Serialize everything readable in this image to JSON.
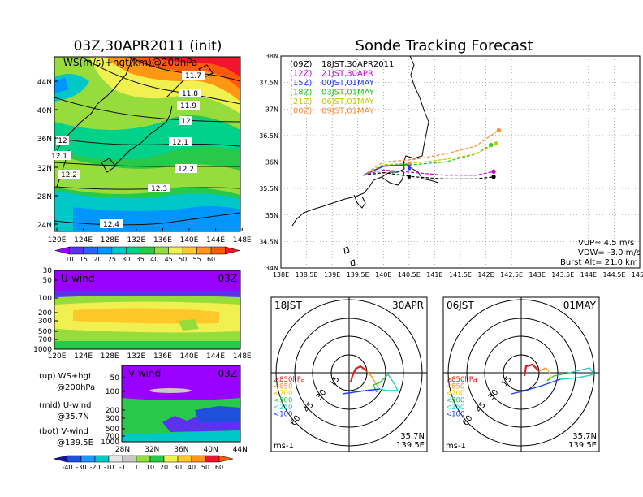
{
  "colors": {
    "ws_scale": [
      "#9900ff",
      "#5a32f0",
      "#2a64ff",
      "#0096ff",
      "#00c8c8",
      "#00d28c",
      "#28c84b",
      "#96dc3c",
      "#f0f050",
      "#ffc828",
      "#ff9614",
      "#ff5a0a",
      "#f0142d"
    ],
    "wind_scale": [
      "#1414a0",
      "#1e50dc",
      "#1e96ff",
      "#00c8c8",
      "#e6e6e6",
      "#c8c8c8",
      "#96dc3c",
      "#28c84b",
      "#f0f050",
      "#ffc828",
      "#ff9614",
      "#f0142d"
    ],
    "track": [
      "#000000",
      "#c800c8",
      "#1e3cff",
      "#14c814",
      "#c8c800",
      "#ff8c32"
    ]
  },
  "left": {
    "map_title": "03Z,30APR2011 (init)",
    "map_label": "WS(m/s)+hgt(km)@200hPa",
    "lat_ticks": [
      "44N",
      "40N",
      "36N",
      "32N",
      "28N",
      "24N"
    ],
    "lon_ticks": [
      "120E",
      "124E",
      "128E",
      "132E",
      "136E",
      "140E",
      "144E",
      "148E"
    ],
    "contour_labels": [
      "11.7",
      "11.8",
      "11.9",
      "12",
      "12.1",
      "12",
      "12.1",
      "12.2",
      "12.2",
      "12.3",
      "12.4"
    ],
    "colorbar_ticks": [
      "10",
      "15",
      "20",
      "25",
      "30",
      "35",
      "40",
      "45",
      "50",
      "55",
      "60"
    ],
    "u_label": "U-wind",
    "u_time": "03Z",
    "p_ticks": [
      "30",
      "50",
      "100",
      "200",
      "300",
      "500",
      "700",
      "1000"
    ],
    "v_label": "V-wind",
    "v_time": "03Z",
    "v_p_ticks": [
      "50",
      "100",
      "200",
      "300",
      "500",
      "700",
      "1000"
    ],
    "v_lat_ticks": [
      "28N",
      "32N",
      "36N",
      "40N",
      "44N"
    ],
    "legend": {
      "up1": "(up) WS+hgt",
      "up2": "@200hPa",
      "mid1": "(mid) U-wind",
      "mid2": "@35.7N",
      "bot1": "(bot) V-wind",
      "bot2": "@139.5E"
    },
    "wind_colorbar_ticks": [
      "-40",
      "-30",
      "-20",
      "-10",
      "-1",
      "1",
      "10",
      "20",
      "30",
      "40",
      "50",
      "60"
    ]
  },
  "right": {
    "title": "Sonde Tracking Forecast",
    "lat_ticks": [
      "38N",
      "37.5N",
      "37N",
      "36.5N",
      "36N",
      "35.5N",
      "35N",
      "34.5N",
      "34N"
    ],
    "lon_ticks": [
      "138E",
      "138.5E",
      "139E",
      "139.5E",
      "140E",
      "140.5E",
      "141E",
      "141.5E",
      "142E",
      "142.5E",
      "143E",
      "143.5E",
      "144E",
      "144.5E",
      "145E"
    ],
    "tracks": [
      {
        "z": "(09Z)",
        "jst": "18JST,30APR2011"
      },
      {
        "z": "(12Z)",
        "jst": "21JST,30APR"
      },
      {
        "z": "(15Z)",
        "jst": "00JST,01MAY"
      },
      {
        "z": "(18Z)",
        "jst": "03JST,01MAY"
      },
      {
        "z": "(21Z)",
        "jst": "06JST,01MAY"
      },
      {
        "z": "(00Z)",
        "jst": "09JST,01MAY"
      }
    ],
    "vup": "VUP= 4.5 m/s",
    "vdw": "VDW= -3.0 m/s",
    "burst": "Burst Alt= 21.0 km"
  },
  "hodographs": [
    {
      "time": "18JST",
      "date": "30APR",
      "lat": "35.7N",
      "lon": "139.5E"
    },
    {
      "time": "06JST",
      "date": "01MAY",
      "lat": "35.7N",
      "lon": "139.5E"
    }
  ],
  "hodo_common": {
    "ring_labels": [
      "15",
      "30",
      "45",
      "60"
    ],
    "units": "ms-1",
    "levels": [
      {
        "label": "≥850hPa",
        "color": "#e61e1e"
      },
      {
        "label": "<850",
        "color": "#ff9614"
      },
      {
        "label": "<700",
        "color": "#e6c800"
      },
      {
        "label": "<500",
        "color": "#28c84b"
      },
      {
        "label": "<250",
        "color": "#28c8c8"
      },
      {
        "label": "<100",
        "color": "#1e3cff"
      }
    ]
  },
  "chart_data": [
    {
      "type": "heatmap",
      "title": "03Z,30APR2011 (init)",
      "annotation": "WS(m/s)+hgt(km)@200hPa",
      "xlim": [
        "120E",
        "148E"
      ],
      "ylim": [
        "22N",
        "46N"
      ],
      "colorbar": [
        10,
        15,
        20,
        25,
        30,
        35,
        40,
        45,
        50,
        55,
        60
      ],
      "contour_labels": [
        11.7,
        11.8,
        11.9,
        12,
        12.1,
        12,
        12.1,
        12.2,
        12.2,
        12.3,
        12.4
      ]
    },
    {
      "type": "heatmap",
      "title": "U-wind",
      "annotation": "03Z",
      "x_ticks": [
        "120E",
        "124E",
        "128E",
        "132E",
        "136E",
        "140E",
        "144E",
        "148E"
      ],
      "y_ticks_hPa": [
        30,
        50,
        100,
        200,
        300,
        500,
        700,
        1000
      ]
    },
    {
      "type": "heatmap",
      "title": "V-wind",
      "annotation": "03Z",
      "x_ticks": [
        "28N",
        "32N",
        "36N",
        "40N",
        "44N"
      ],
      "y_ticks_hPa": [
        50,
        100,
        200,
        300,
        500,
        700,
        1000
      ],
      "colorbar": [
        -40,
        -30,
        -20,
        -10,
        -1,
        1,
        10,
        20,
        30,
        40,
        50,
        60
      ]
    },
    {
      "type": "line",
      "title": "Sonde Tracking Forecast",
      "xlim": [
        138,
        145
      ],
      "ylim": [
        34,
        38
      ],
      "series": [
        {
          "name": "(09Z) 18JST,30APR2011",
          "x": [
            139.6,
            140.0,
            140.6,
            141.2,
            141.8,
            142.15
          ],
          "y": [
            35.75,
            35.8,
            35.72,
            35.68,
            35.68,
            35.72
          ]
        },
        {
          "name": "(12Z) 21JST,30APR",
          "x": [
            139.6,
            140.0,
            140.6,
            141.2,
            141.8,
            142.15
          ],
          "y": [
            35.75,
            35.85,
            35.8,
            35.75,
            35.75,
            35.82
          ]
        },
        {
          "name": "(15Z) 00JST,01MAY",
          "x": [
            139.6,
            140.0,
            140.5
          ],
          "y": [
            35.75,
            35.92,
            35.95
          ]
        },
        {
          "name": "(18Z) 03JST,01MAY",
          "x": [
            139.6,
            140.0,
            140.6,
            141.2,
            141.8,
            142.1
          ],
          "y": [
            35.75,
            35.95,
            35.95,
            36.0,
            36.15,
            36.32
          ]
        },
        {
          "name": "(21Z) 06JST,01MAY",
          "x": [
            139.6,
            140.0,
            140.6,
            141.2,
            141.8,
            142.2
          ],
          "y": [
            35.75,
            35.95,
            35.98,
            36.05,
            36.15,
            36.35
          ]
        },
        {
          "name": "(00Z) 09JST,01MAY",
          "x": [
            139.6,
            140.0,
            140.6,
            141.2,
            141.8,
            142.25
          ],
          "y": [
            35.75,
            36.0,
            36.05,
            36.15,
            36.3,
            36.6
          ]
        }
      ]
    }
  ]
}
